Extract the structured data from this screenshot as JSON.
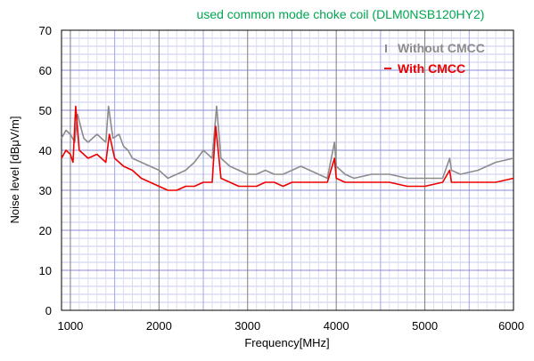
{
  "chart_data": {
    "type": "line",
    "title": "used common mode choke coil (DLM0NSB120HY2)",
    "xlabel": "Frequency[MHz]",
    "ylabel": "Noise level [dBμV/m]",
    "xlim": [
      900,
      6000
    ],
    "ylim": [
      0,
      70
    ],
    "x_ticks": [
      "1000",
      "2000",
      "3000",
      "4000",
      "5000",
      "6000"
    ],
    "y_ticks": [
      "0",
      "10",
      "20",
      "30",
      "40",
      "50",
      "60",
      "70"
    ],
    "grid": true,
    "legend_position": "top-right",
    "series": [
      {
        "name": "Without CMCC",
        "color": "#8c8c8c",
        "x": [
          900,
          950,
          1000,
          1050,
          1080,
          1150,
          1200,
          1300,
          1400,
          1430,
          1480,
          1550,
          1600,
          1650,
          1700,
          1800,
          1900,
          2000,
          2100,
          2200,
          2300,
          2400,
          2500,
          2600,
          2650,
          2700,
          2800,
          2900,
          3000,
          3100,
          3200,
          3300,
          3400,
          3500,
          3600,
          3700,
          3800,
          3900,
          3980,
          4000,
          4100,
          4200,
          4400,
          4600,
          4800,
          5000,
          5200,
          5280,
          5300,
          5400,
          5600,
          5800,
          6000
        ],
        "y": [
          43,
          45,
          44,
          42,
          49,
          43,
          42,
          44,
          42,
          51,
          43,
          44,
          41,
          40,
          38,
          37,
          36,
          35,
          33,
          34,
          35,
          37,
          40,
          38,
          51,
          38,
          36,
          35,
          34,
          34,
          35,
          34,
          34,
          35,
          36,
          35,
          34,
          33,
          42,
          36,
          34,
          33,
          34,
          34,
          33,
          33,
          33,
          38,
          35,
          34,
          35,
          37,
          38
        ]
      },
      {
        "name": "With CMCC",
        "color": "#ee0000",
        "x": [
          900,
          950,
          1000,
          1030,
          1060,
          1100,
          1150,
          1200,
          1300,
          1400,
          1440,
          1500,
          1600,
          1700,
          1800,
          1900,
          2000,
          2100,
          2200,
          2300,
          2400,
          2500,
          2600,
          2640,
          2700,
          2800,
          2900,
          3000,
          3100,
          3200,
          3300,
          3400,
          3500,
          3600,
          3700,
          3800,
          3900,
          3980,
          4000,
          4100,
          4200,
          4400,
          4600,
          4800,
          5000,
          5200,
          5280,
          5300,
          5400,
          5600,
          5800,
          6000
        ],
        "y": [
          38,
          40,
          39,
          37,
          51,
          40,
          39,
          38,
          39,
          37,
          44,
          38,
          36,
          35,
          33,
          32,
          31,
          30,
          30,
          31,
          31,
          32,
          32,
          46,
          33,
          32,
          31,
          31,
          31,
          32,
          32,
          31,
          32,
          32,
          32,
          32,
          32,
          38,
          33,
          32,
          32,
          32,
          32,
          31,
          31,
          32,
          35,
          32,
          32,
          32,
          32,
          33
        ]
      }
    ]
  }
}
